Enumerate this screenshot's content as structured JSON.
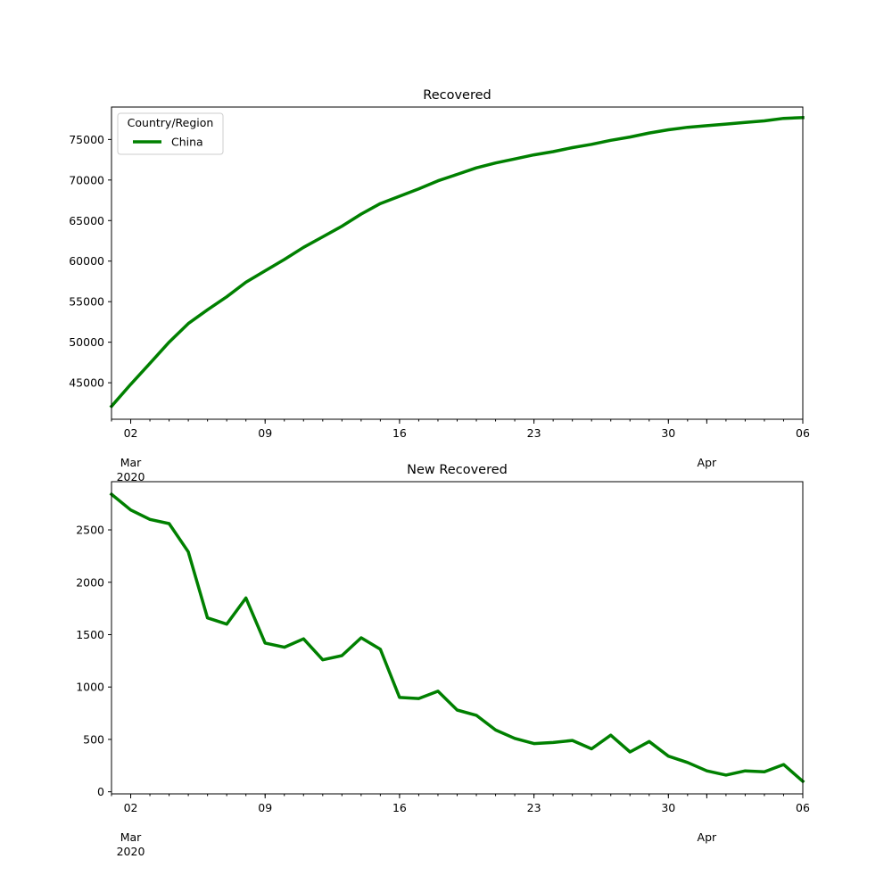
{
  "chart_data": [
    {
      "type": "line",
      "title": "Recovered",
      "xlabel": "",
      "ylabel": "",
      "legend": {
        "title": "Country/Region",
        "placement": "top-left"
      },
      "ylim": [
        40500,
        79000
      ],
      "yticks": [
        45000,
        50000,
        55000,
        60000,
        65000,
        70000,
        75000
      ],
      "x": [
        "2020-03-01",
        "2020-03-02",
        "2020-03-03",
        "2020-03-04",
        "2020-03-05",
        "2020-03-06",
        "2020-03-07",
        "2020-03-08",
        "2020-03-09",
        "2020-03-10",
        "2020-03-11",
        "2020-03-12",
        "2020-03-13",
        "2020-03-14",
        "2020-03-15",
        "2020-03-16",
        "2020-03-17",
        "2020-03-18",
        "2020-03-19",
        "2020-03-20",
        "2020-03-21",
        "2020-03-22",
        "2020-03-23",
        "2020-03-24",
        "2020-03-25",
        "2020-03-26",
        "2020-03-27",
        "2020-03-28",
        "2020-03-29",
        "2020-03-30",
        "2020-03-31",
        "2020-04-01",
        "2020-04-02",
        "2020-04-03",
        "2020-04-04",
        "2020-04-05",
        "2020-04-06"
      ],
      "xticks": [
        {
          "label": "02",
          "sub": [
            "Mar",
            "2020"
          ]
        },
        {
          "label": "09",
          "sub": []
        },
        {
          "label": "16",
          "sub": []
        },
        {
          "label": "23",
          "sub": []
        },
        {
          "label": "30",
          "sub": []
        },
        {
          "label": "",
          "sub": [
            "Apr"
          ]
        },
        {
          "label": "06",
          "sub": []
        }
      ],
      "series": [
        {
          "name": "China",
          "color": "#008000",
          "values": [
            42100,
            44800,
            47400,
            50000,
            52300,
            54000,
            55600,
            57400,
            58800,
            60200,
            61700,
            63000,
            64300,
            65800,
            67100,
            68000,
            68900,
            69900,
            70700,
            71500,
            72100,
            72600,
            73100,
            73500,
            74000,
            74400,
            74900,
            75300,
            75800,
            76200,
            76500,
            76700,
            76900,
            77100,
            77300,
            77600,
            77700
          ]
        }
      ]
    },
    {
      "type": "line",
      "title": "New Recovered",
      "xlabel": "",
      "ylabel": "",
      "ylim": [
        -20,
        2960
      ],
      "yticks": [
        0,
        500,
        1000,
        1500,
        2000,
        2500
      ],
      "x": [
        "2020-03-01",
        "2020-03-02",
        "2020-03-03",
        "2020-03-04",
        "2020-03-05",
        "2020-03-06",
        "2020-03-07",
        "2020-03-08",
        "2020-03-09",
        "2020-03-10",
        "2020-03-11",
        "2020-03-12",
        "2020-03-13",
        "2020-03-14",
        "2020-03-15",
        "2020-03-16",
        "2020-03-17",
        "2020-03-18",
        "2020-03-19",
        "2020-03-20",
        "2020-03-21",
        "2020-03-22",
        "2020-03-23",
        "2020-03-24",
        "2020-03-25",
        "2020-03-26",
        "2020-03-27",
        "2020-03-28",
        "2020-03-29",
        "2020-03-30",
        "2020-03-31",
        "2020-04-01",
        "2020-04-02",
        "2020-04-03",
        "2020-04-04",
        "2020-04-05",
        "2020-04-06"
      ],
      "xticks": [
        {
          "label": "02",
          "sub": [
            "Mar",
            "2020"
          ]
        },
        {
          "label": "09",
          "sub": []
        },
        {
          "label": "16",
          "sub": []
        },
        {
          "label": "23",
          "sub": []
        },
        {
          "label": "30",
          "sub": []
        },
        {
          "label": "",
          "sub": [
            "Apr"
          ]
        },
        {
          "label": "06",
          "sub": []
        }
      ],
      "series": [
        {
          "color": "#008000",
          "values": [
            2840,
            2690,
            2600,
            2560,
            2290,
            1660,
            1600,
            1850,
            1420,
            1380,
            1460,
            1260,
            1300,
            1470,
            1360,
            900,
            890,
            960,
            780,
            730,
            590,
            510,
            460,
            470,
            490,
            410,
            540,
            380,
            480,
            340,
            280,
            200,
            160,
            200,
            190,
            260,
            100
          ]
        }
      ]
    }
  ]
}
